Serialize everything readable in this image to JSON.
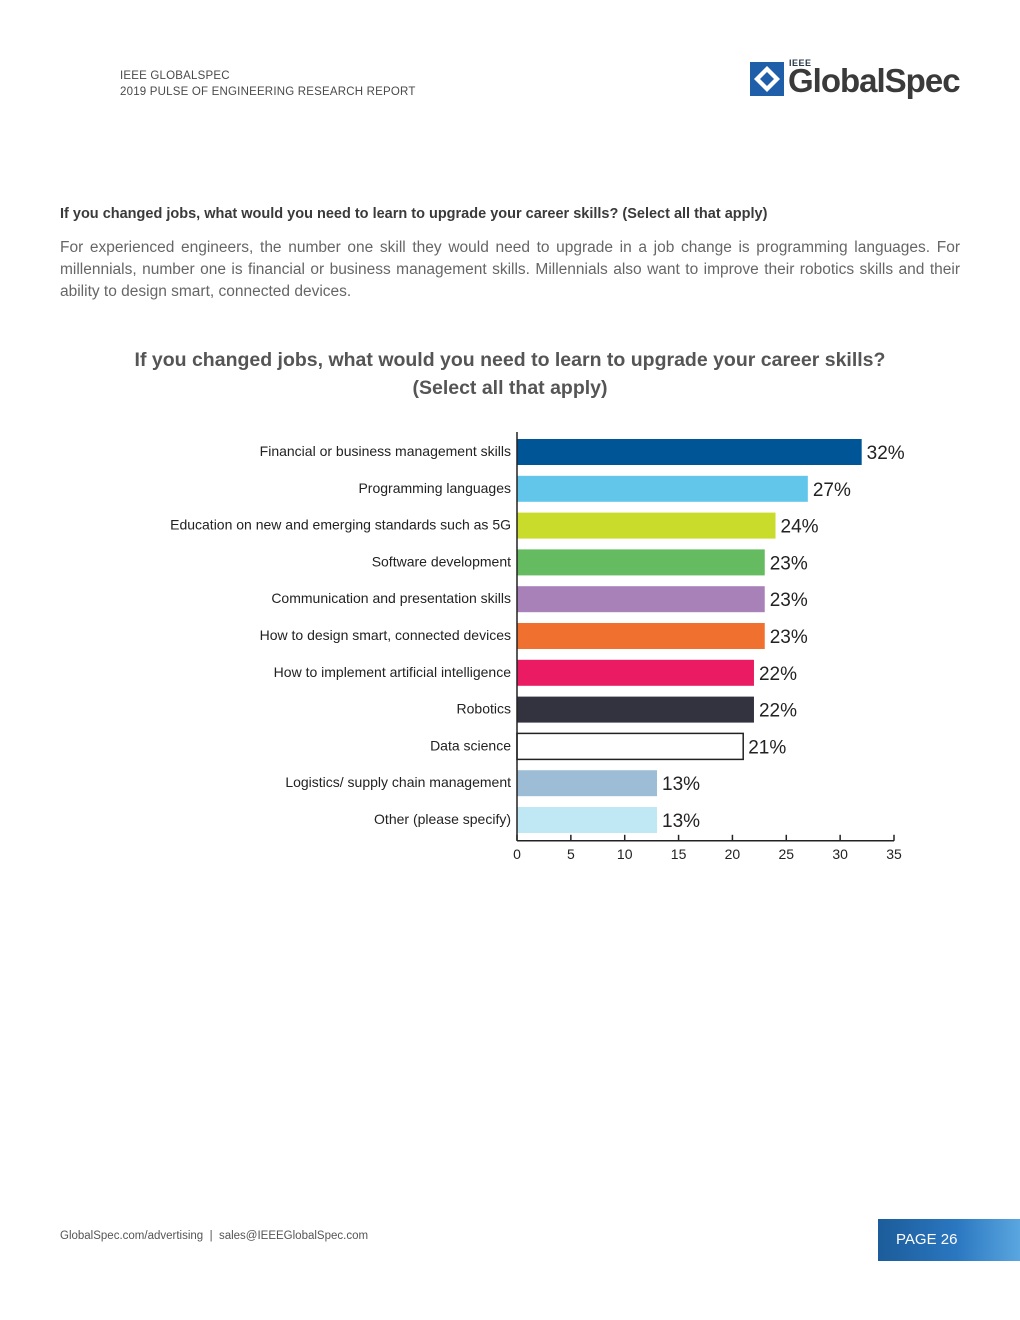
{
  "header": {
    "line1": "IEEE GLOBALSPEC",
    "line2": "2019 PULSE OF ENGINEERING RESEARCH REPORT"
  },
  "logo": {
    "ieee": "IEEE",
    "word": "GlobalSpec",
    "icon": "diamond-logo-icon",
    "color": "#1f5ea8"
  },
  "question_heading": "If you changed jobs, what would you need to learn to upgrade your career skills? (Select all that apply)",
  "body_text": "For experienced engineers, the number one skill they would need to upgrade in a job change is programming languages. For millennials, number one is financial or business management skills. Millennials also want to improve their robotics skills and their ability to design smart, connected devices.",
  "chart_data": {
    "type": "bar",
    "orientation": "horizontal",
    "title_line1": "If you changed jobs, what would you need to learn to upgrade your career skills?",
    "title_line2": "(Select all that apply)",
    "categories": [
      "Financial or business management skills",
      "Programming languages",
      "Education on new and emerging standards such as 5G",
      "Software development",
      "Communication and presentation skills",
      "How to design smart, connected devices",
      "How to implement artificial intelligence",
      "Robotics",
      "Data science",
      "Logistics/ supply chain management",
      "Other (please specify)"
    ],
    "values": [
      32,
      27,
      24,
      23,
      23,
      23,
      22,
      22,
      21,
      13,
      13
    ],
    "value_labels": [
      "32%",
      "27%",
      "24%",
      "23%",
      "23%",
      "23%",
      "22%",
      "22%",
      "21%",
      "13%",
      "13%"
    ],
    "colors": [
      "#005596",
      "#62c6ea",
      "#c9dc2b",
      "#64bb60",
      "#a981b9",
      "#f07030",
      "#ea1a63",
      "#33333f",
      "#ffffff",
      "#9dbdd7",
      "#c0e7f4"
    ],
    "xlim": [
      0,
      35
    ],
    "xticks": [
      "0",
      "5",
      "10",
      "15",
      "20",
      "25",
      "30",
      "35"
    ],
    "grid": false
  },
  "footer": {
    "text": "GlobalSpec.com/advertising  |  sales@IEEEGlobalSpec.com",
    "page": "PAGE 26"
  }
}
